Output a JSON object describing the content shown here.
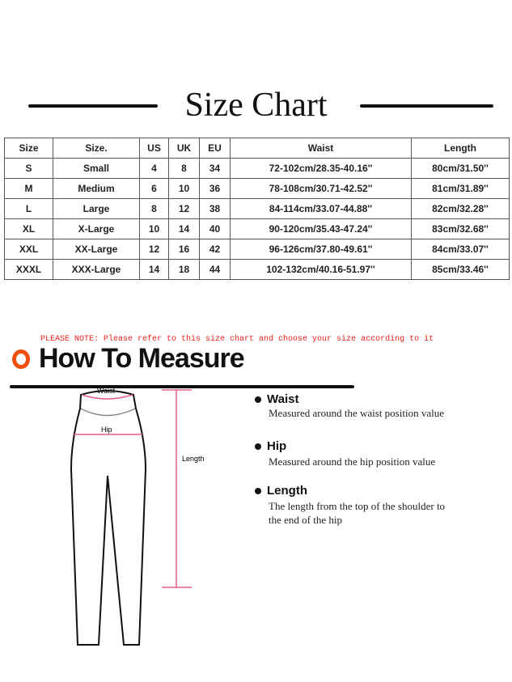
{
  "title": "Size Chart",
  "table": {
    "headers": [
      "Size",
      "Size.",
      "US",
      "UK",
      "EU",
      "Waist",
      "Length"
    ],
    "rows": [
      [
        "S",
        "Small",
        "4",
        "8",
        "34",
        "72-102cm/28.35-40.16''",
        "80cm/31.50''"
      ],
      [
        "M",
        "Medium",
        "6",
        "10",
        "36",
        "78-108cm/30.71-42.52''",
        "81cm/31.89''"
      ],
      [
        "L",
        "Large",
        "8",
        "12",
        "38",
        "84-114cm/33.07-44.88''",
        "82cm/32.28''"
      ],
      [
        "XL",
        "X-Large",
        "10",
        "14",
        "40",
        "90-120cm/35.43-47.24''",
        "83cm/32.68''"
      ],
      [
        "XXL",
        "XX-Large",
        "12",
        "16",
        "42",
        "96-126cm/37.80-49.61''",
        "84cm/33.07''"
      ],
      [
        "XXXL",
        "XXX-Large",
        "14",
        "18",
        "44",
        "102-132cm/40.16-51.97''",
        "85cm/33.46''"
      ]
    ]
  },
  "note": "PLEASE NOTE: Please refer to this size chart and choose your size according to it",
  "how_to": {
    "heading": "How To Measure",
    "diagram": {
      "waist": "Waist",
      "hip": "Hip",
      "length": "Length"
    },
    "items": [
      {
        "title": "Waist",
        "desc": "Measured around the waist position value"
      },
      {
        "title": "Hip",
        "desc": "Measured around the  hip position value"
      },
      {
        "title": "Length",
        "desc": "The length from the top of the shoulder to",
        "desc2": "the end of the hip"
      }
    ]
  },
  "colors": {
    "accent": "#f04e0f",
    "note": "#e8201c",
    "measure": "#e06080"
  }
}
